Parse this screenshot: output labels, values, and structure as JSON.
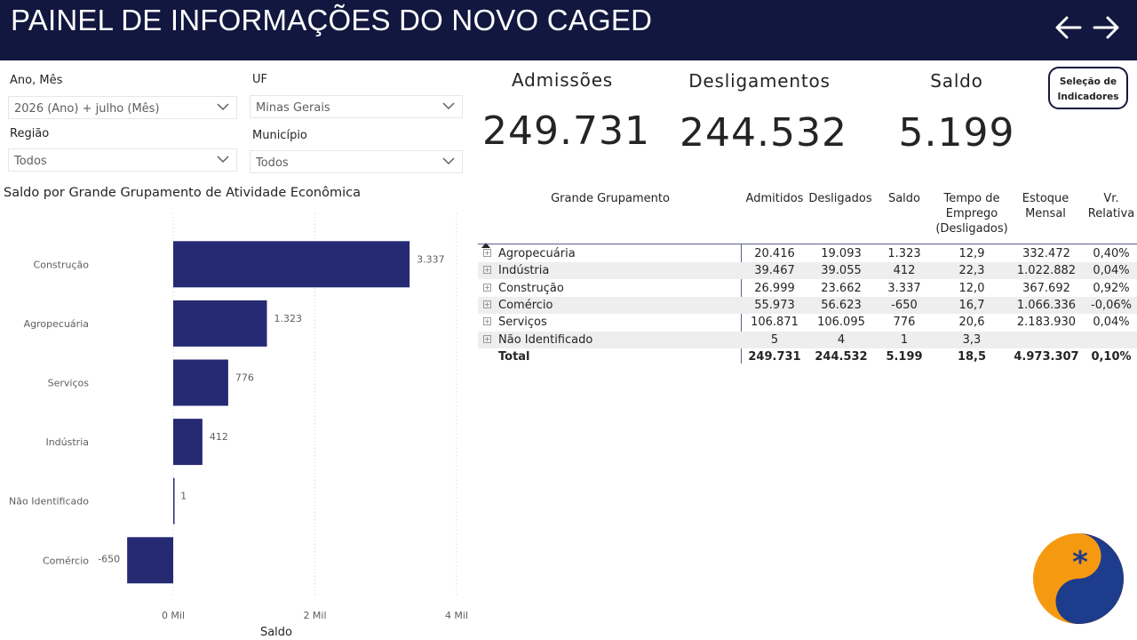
{
  "header": {
    "title": "PAINEL DE INFORMAÇÕES DO NOVO CAGED",
    "back_icon": "arrow-left-icon",
    "forward_icon": "arrow-right-icon"
  },
  "filters": {
    "ano_mes": {
      "label": "Ano, Mês",
      "value": "2026 (Ano) + julho (Mês)"
    },
    "uf": {
      "label": "UF",
      "value": "Minas Gerais"
    },
    "regiao": {
      "label": "Região",
      "value": "Todos"
    },
    "municipio": {
      "label": "Município",
      "value": "Todos"
    }
  },
  "kpis": {
    "admissoes": {
      "label": "Admissões",
      "value": "249.731"
    },
    "desligamentos": {
      "label": "Desligamentos",
      "value": "244.532"
    },
    "saldo": {
      "label": "Saldo",
      "value": "5.199"
    }
  },
  "selection_button": {
    "line1": "Seleção de",
    "line2": "Indicadores"
  },
  "chart_data": {
    "type": "bar",
    "orientation": "horizontal",
    "title": "Saldo por Grande Grupamento de Atividade Econômica",
    "xlabel": "Saldo",
    "ylabel": "",
    "categories": [
      "Construção",
      "Agropecuária",
      "Serviços",
      "Indústria",
      "Não Identificado",
      "Comércio"
    ],
    "values": [
      3337,
      1323,
      776,
      412,
      1,
      -650
    ],
    "value_labels": [
      "3.337",
      "1.323",
      "776",
      "412",
      "1",
      "-650"
    ],
    "xlim": [
      -800,
      4000
    ],
    "xticks": [
      0,
      2000,
      4000
    ],
    "xtick_labels": [
      "0 Mil",
      "2 Mil",
      "4 Mil"
    ],
    "grid": "vertical dotted",
    "bar_color": "#252a73"
  },
  "table": {
    "headers": {
      "grupamento": "Grande Grupamento",
      "admitidos": "Admitidos",
      "desligados": "Desligados",
      "saldo": "Saldo",
      "tempo_l1": "Tempo de",
      "tempo_l2": "Emprego",
      "tempo_l3": "(Desligados)",
      "estoque_l1": "Estoque",
      "estoque_l2": "Mensal",
      "vr_l1": "Vr.",
      "vr_l2": "Relativa"
    },
    "sort_icon": "sort-ascending-icon",
    "rows": [
      {
        "name": "Agropecuária",
        "admitidos": "20.416",
        "desligados": "19.093",
        "saldo": "1.323",
        "tempo": "12,9",
        "estoque": "332.472",
        "vr": "0,40%"
      },
      {
        "name": "Indústria",
        "admitidos": "39.467",
        "desligados": "39.055",
        "saldo": "412",
        "tempo": "22,3",
        "estoque": "1.022.882",
        "vr": "0,04%"
      },
      {
        "name": "Construção",
        "admitidos": "26.999",
        "desligados": "23.662",
        "saldo": "3.337",
        "tempo": "12,0",
        "estoque": "367.692",
        "vr": "0,92%"
      },
      {
        "name": "Comércio",
        "admitidos": "55.973",
        "desligados": "56.623",
        "saldo": "-650",
        "tempo": "16,7",
        "estoque": "1.066.336",
        "vr": "-0,06%"
      },
      {
        "name": "Serviços",
        "admitidos": "106.871",
        "desligados": "106.095",
        "saldo": "776",
        "tempo": "20,6",
        "estoque": "2.183.930",
        "vr": "0,04%"
      },
      {
        "name": "Não Identificado",
        "admitidos": "5",
        "desligados": "4",
        "saldo": "1",
        "tempo": "3,3",
        "estoque": "",
        "vr": ""
      }
    ],
    "total": {
      "name": "Total",
      "admitidos": "249.731",
      "desligados": "244.532",
      "saldo": "5.199",
      "tempo": "18,5",
      "estoque": "4.973.307",
      "vr": "0,10%"
    }
  },
  "colors": {
    "header_bg": "#12173f",
    "bar": "#252a73",
    "logo_orange": "#f59a10",
    "logo_blue": "#1e3c8c"
  },
  "logo": {
    "icon": "asterisk-logo-icon"
  }
}
